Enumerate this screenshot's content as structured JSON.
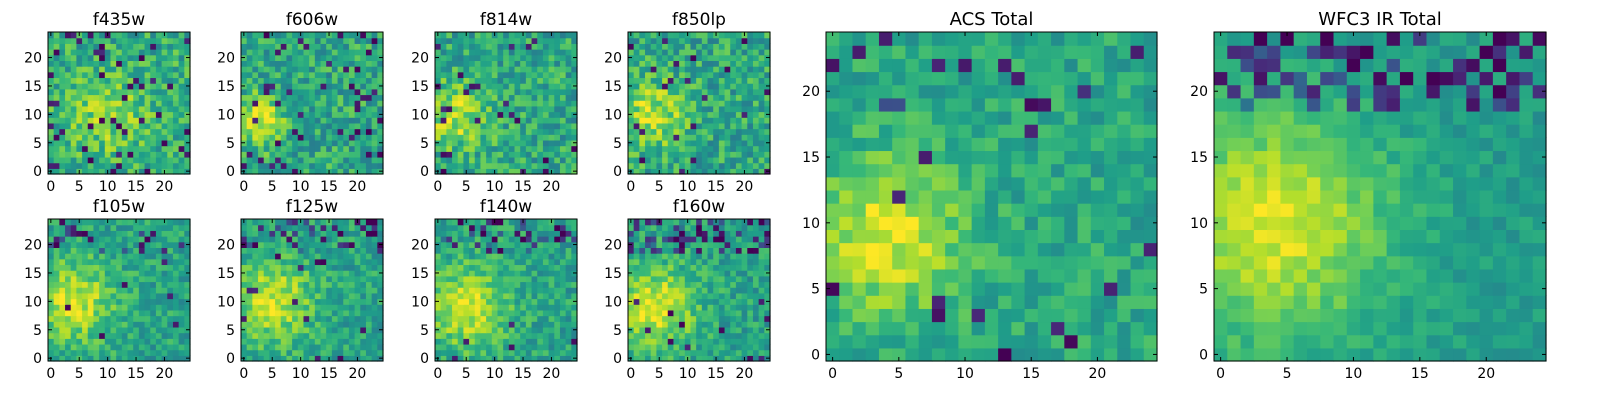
{
  "figure": {
    "background": "#ffffff"
  },
  "colormap": {
    "name": "viridis",
    "stops": [
      "#440154",
      "#482878",
      "#3e4989",
      "#31688e",
      "#26828e",
      "#1f9e89",
      "#35b779",
      "#6ece58",
      "#b5de2b",
      "#fde725"
    ]
  },
  "chart_data": [
    {
      "id": "f435w",
      "type": "heatmap",
      "title": "f435w",
      "grid_size": 25,
      "x_ticks": [
        0,
        5,
        10,
        15,
        20
      ],
      "y_ticks": [
        0,
        5,
        10,
        15,
        20
      ],
      "xlim": [
        0,
        25
      ],
      "ylim": [
        0,
        25
      ],
      "bright_spot": {
        "x": 10,
        "y": 10,
        "sigma": 5,
        "amplitude": 0.2
      },
      "base_level": 0.62,
      "noise_level": 0.18,
      "dark_pixel_rate": 0.07,
      "top_dark_rate": 0,
      "seed": 11
    },
    {
      "id": "f606w",
      "type": "heatmap",
      "title": "f606w",
      "grid_size": 25,
      "x_ticks": [
        0,
        5,
        10,
        15,
        20
      ],
      "y_ticks": [
        0,
        5,
        10,
        15,
        20
      ],
      "xlim": [
        0,
        25
      ],
      "ylim": [
        0,
        25
      ],
      "bright_spot": {
        "x": 3,
        "y": 9,
        "sigma": 3,
        "amplitude": 0.35
      },
      "base_level": 0.6,
      "noise_level": 0.18,
      "dark_pixel_rate": 0.07,
      "top_dark_rate": 0,
      "seed": 23
    },
    {
      "id": "f814w",
      "type": "heatmap",
      "title": "f814w",
      "grid_size": 25,
      "x_ticks": [
        0,
        5,
        10,
        15,
        20
      ],
      "y_ticks": [
        0,
        5,
        10,
        15,
        20
      ],
      "xlim": [
        0,
        25
      ],
      "ylim": [
        0,
        25
      ],
      "bright_spot": {
        "x": 3,
        "y": 10,
        "sigma": 4,
        "amplitude": 0.3
      },
      "base_level": 0.6,
      "noise_level": 0.18,
      "dark_pixel_rate": 0.05,
      "top_dark_rate": 0,
      "seed": 37
    },
    {
      "id": "f850lp",
      "type": "heatmap",
      "title": "f850lp",
      "grid_size": 25,
      "x_ticks": [
        0,
        5,
        10,
        15,
        20
      ],
      "y_ticks": [
        0,
        5,
        10,
        15,
        20
      ],
      "xlim": [
        0,
        25
      ],
      "ylim": [
        0,
        25
      ],
      "bright_spot": {
        "x": 4,
        "y": 10,
        "sigma": 4,
        "amplitude": 0.3
      },
      "base_level": 0.6,
      "noise_level": 0.18,
      "dark_pixel_rate": 0.05,
      "top_dark_rate": 0,
      "seed": 41
    },
    {
      "id": "f105w",
      "type": "heatmap",
      "title": "f105w",
      "grid_size": 25,
      "x_ticks": [
        0,
        5,
        10,
        15,
        20
      ],
      "y_ticks": [
        0,
        5,
        10,
        15,
        20
      ],
      "xlim": [
        0,
        25
      ],
      "ylim": [
        0,
        25
      ],
      "bright_spot": {
        "x": 4,
        "y": 10,
        "sigma": 5,
        "amplitude": 0.35
      },
      "base_level": 0.58,
      "noise_level": 0.14,
      "dark_pixel_rate": 0.02,
      "top_dark_rate": 0.15,
      "seed": 53
    },
    {
      "id": "f125w",
      "type": "heatmap",
      "title": "f125w",
      "grid_size": 25,
      "x_ticks": [
        0,
        5,
        10,
        15,
        20
      ],
      "y_ticks": [
        0,
        5,
        10,
        15,
        20
      ],
      "xlim": [
        0,
        25
      ],
      "ylim": [
        0,
        25
      ],
      "bright_spot": {
        "x": 5,
        "y": 10,
        "sigma": 5,
        "amplitude": 0.35
      },
      "base_level": 0.58,
      "noise_level": 0.14,
      "dark_pixel_rate": 0.02,
      "top_dark_rate": 0.2,
      "seed": 67
    },
    {
      "id": "f140w",
      "type": "heatmap",
      "title": "f140w",
      "grid_size": 25,
      "x_ticks": [
        0,
        5,
        10,
        15,
        20
      ],
      "y_ticks": [
        0,
        5,
        10,
        15,
        20
      ],
      "xlim": [
        0,
        25
      ],
      "ylim": [
        0,
        25
      ],
      "bright_spot": {
        "x": 5,
        "y": 9,
        "sigma": 5,
        "amplitude": 0.35
      },
      "base_level": 0.58,
      "noise_level": 0.14,
      "dark_pixel_rate": 0.02,
      "top_dark_rate": 0.25,
      "seed": 79
    },
    {
      "id": "f160w",
      "type": "heatmap",
      "title": "f160w",
      "grid_size": 25,
      "x_ticks": [
        0,
        5,
        10,
        15,
        20
      ],
      "y_ticks": [
        0,
        5,
        10,
        15,
        20
      ],
      "xlim": [
        0,
        25
      ],
      "ylim": [
        0,
        25
      ],
      "bright_spot": {
        "x": 4,
        "y": 9,
        "sigma": 5,
        "amplitude": 0.38
      },
      "base_level": 0.58,
      "noise_level": 0.14,
      "dark_pixel_rate": 0.02,
      "top_dark_rate": 0.3,
      "seed": 83
    },
    {
      "id": "acs-total",
      "type": "heatmap",
      "title": "ACS Total",
      "grid_size": 25,
      "x_ticks": [
        0,
        5,
        10,
        15,
        20
      ],
      "y_ticks": [
        0,
        5,
        10,
        15,
        20
      ],
      "xlim": [
        0,
        25
      ],
      "ylim": [
        0,
        25
      ],
      "bright_spot": {
        "x": 4,
        "y": 9,
        "sigma": 4,
        "amplitude": 0.35
      },
      "base_level": 0.6,
      "noise_level": 0.12,
      "dark_pixel_rate": 0.04,
      "top_dark_rate": 0.08,
      "seed": 97
    },
    {
      "id": "wfc3-ir-total",
      "type": "heatmap",
      "title": "WFC3 IR Total",
      "grid_size": 25,
      "x_ticks": [
        0,
        5,
        10,
        15,
        20
      ],
      "y_ticks": [
        0,
        5,
        10,
        15,
        20
      ],
      "xlim": [
        0,
        25
      ],
      "ylim": [
        0,
        25
      ],
      "bright_spot": {
        "x": 4,
        "y": 10,
        "sigma": 6,
        "amplitude": 0.4
      },
      "base_level": 0.55,
      "noise_level": 0.08,
      "dark_pixel_rate": 0.0,
      "top_dark_rate": 0.35,
      "seed": 101
    }
  ]
}
